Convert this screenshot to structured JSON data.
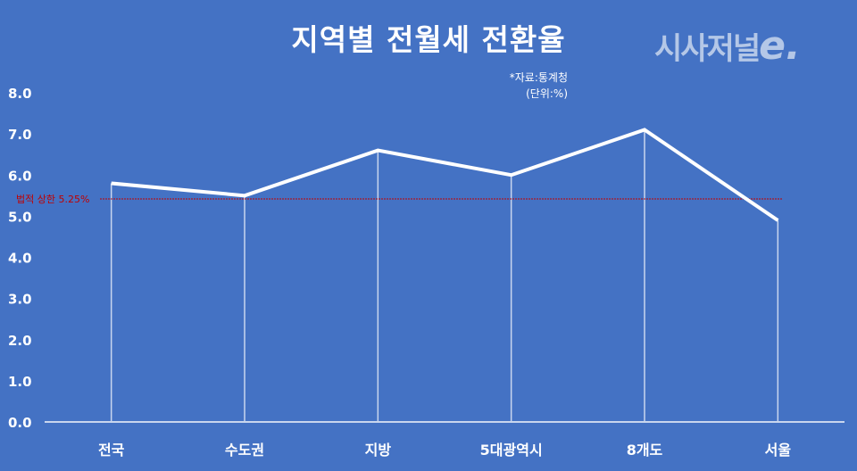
{
  "header": {
    "title": "지역별 전월세 전환율",
    "logo_text": "시사저널",
    "logo_suffix": "e.",
    "source": "*자료:통계청",
    "unit": "(단위:%)"
  },
  "colors": {
    "background": "#4472c4",
    "line": "#ffffff",
    "reference_line": "#c00000",
    "logo": "#b4c7e7"
  },
  "chart_data": {
    "type": "line",
    "title": "지역별 전월세 전환율",
    "xlabel": "",
    "ylabel": "",
    "unit": "%",
    "categories": [
      "전국",
      "수도권",
      "지방",
      "5대광역시",
      "8개도",
      "서울"
    ],
    "series": [
      {
        "name": "전월세 전환율",
        "values": [
          5.8,
          5.5,
          6.6,
          6.0,
          7.1,
          4.9
        ]
      }
    ],
    "ylim": [
      0,
      8
    ],
    "yticks": [
      "0.0",
      "1.0",
      "2.0",
      "3.0",
      "4.0",
      "5.0",
      "6.0",
      "7.0",
      "8.0"
    ],
    "grid": false,
    "drop_lines": true,
    "annotations": [
      {
        "type": "hline",
        "value": 5.25,
        "label": "법적 상한 5.25%",
        "color": "#c00000",
        "style": "dotted"
      }
    ],
    "source": "*자료:통계청",
    "unit_label": "(단위:%)"
  }
}
